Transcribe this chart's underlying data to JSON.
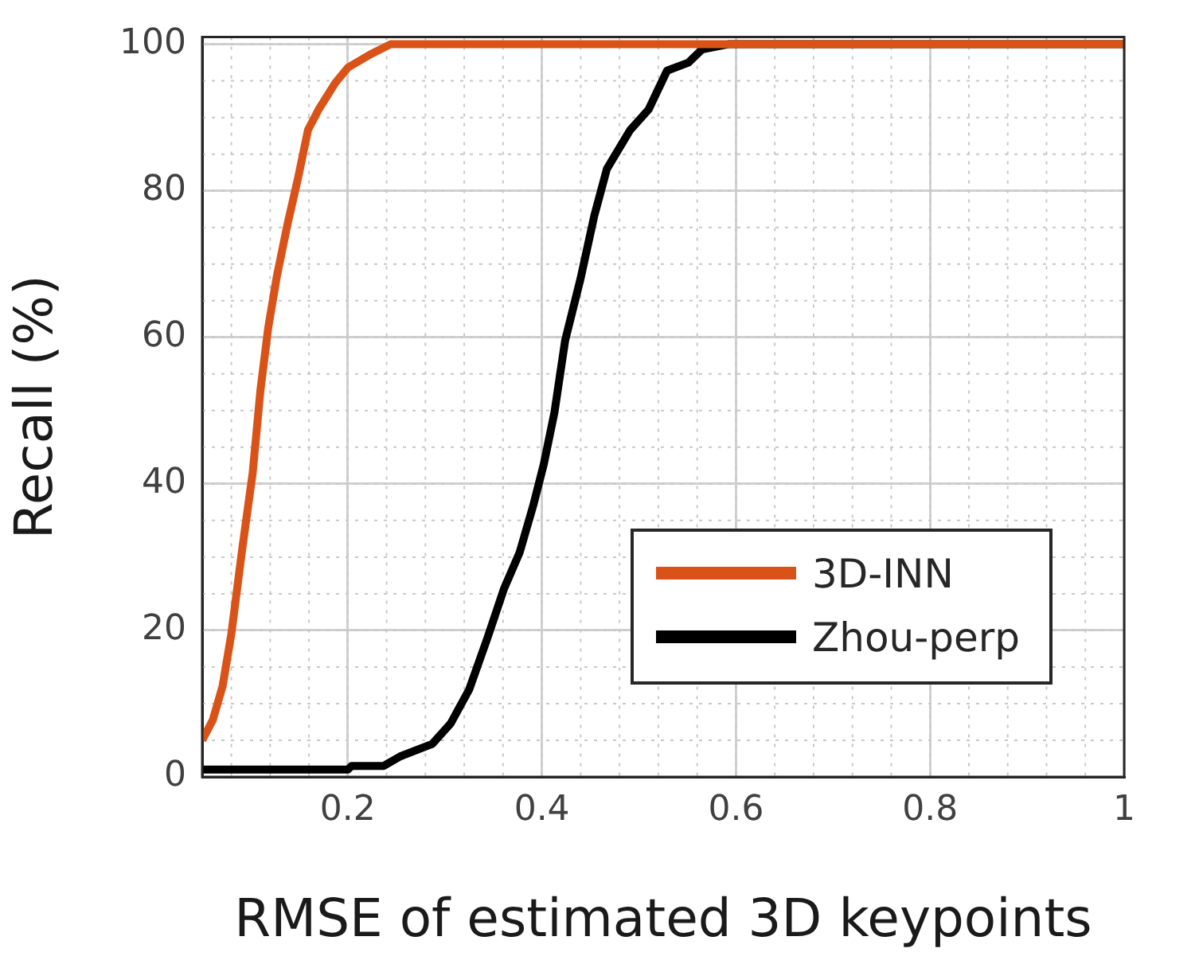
{
  "chart_data": {
    "type": "line",
    "xlabel": "RMSE of estimated 3D keypoints",
    "ylabel": "Recall (%)",
    "xlim": [
      0.05,
      1
    ],
    "xticks": [
      0.2,
      0.4,
      0.6,
      0.8,
      1
    ],
    "ylim": [
      0,
      101
    ],
    "yticks": [
      0,
      20,
      40,
      60,
      80,
      100
    ],
    "grid": true,
    "legend": "bottom right",
    "marker": "none",
    "line_style": "solid",
    "series": [
      {
        "name": "3D-INN",
        "color": "#d95319",
        "x": [
          0.05,
          0.061,
          0.071,
          0.08,
          0.091,
          0.102,
          0.11,
          0.118,
          0.127,
          0.138,
          0.149,
          0.159,
          0.17,
          0.187,
          0.2,
          0.223,
          0.244,
          0.29,
          0.3,
          1
        ],
        "values": [
          5,
          7.8,
          12.4,
          19.5,
          30.9,
          41.5,
          52.8,
          61.3,
          68.4,
          75.5,
          81.9,
          88.3,
          91.1,
          94.7,
          96.8,
          98.6,
          100,
          100,
          100,
          100
        ]
      },
      {
        "name": "Zhou-perp",
        "color": "#000000",
        "x": [
          0.05,
          0.2,
          0.204,
          0.237,
          0.254,
          0.287,
          0.306,
          0.325,
          0.344,
          0.361,
          0.377,
          0.391,
          0.402,
          0.413,
          0.424,
          0.44,
          0.454,
          0.467,
          0.491,
          0.51,
          0.529,
          0.551,
          0.565,
          0.592,
          0.636,
          1
        ],
        "values": [
          1,
          1,
          1.5,
          1.5,
          2.8,
          4.5,
          7.3,
          11.9,
          19,
          25.7,
          30.6,
          37,
          42.7,
          49.8,
          59.6,
          68.1,
          76.6,
          83,
          88.3,
          91.1,
          96.4,
          97.5,
          99.3,
          100,
          100,
          100
        ]
      }
    ]
  }
}
